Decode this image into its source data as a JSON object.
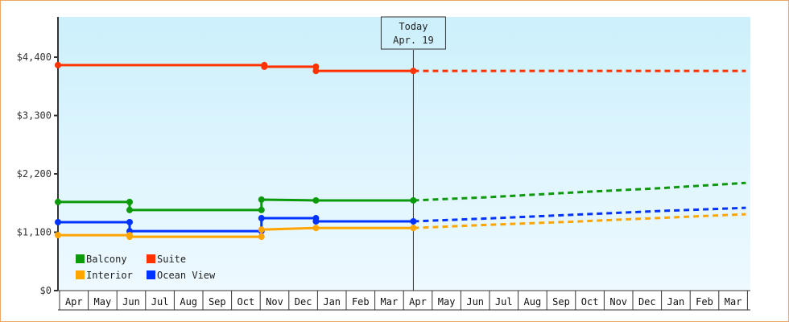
{
  "chart_data": {
    "type": "line",
    "title": "",
    "xlabel": "",
    "ylabel": "",
    "ylim": [
      0,
      4950
    ],
    "yticks": [
      0,
      1100,
      2200,
      3300,
      4400
    ],
    "ytick_labels": [
      "$0",
      "$1,100",
      "$2,200",
      "$3,300",
      "$4,400"
    ],
    "x_months": [
      "Apr",
      "May",
      "Jun",
      "Jul",
      "Aug",
      "Sep",
      "Oct",
      "Nov",
      "Dec",
      "Jan",
      "Feb",
      "Mar",
      "Apr",
      "May",
      "Jun",
      "Jul",
      "Aug",
      "Sep",
      "Oct",
      "Nov",
      "Dec",
      "Jan",
      "Feb",
      "Mar"
    ],
    "today_marker": {
      "line1": "Today",
      "line2": "Apr. 19",
      "month_index": 12.4
    },
    "legend": [
      {
        "name": "Balcony",
        "color": "#0a9a0a"
      },
      {
        "name": "Suite",
        "color": "#ff3300"
      },
      {
        "name": "Interior",
        "color": "#ffa500"
      },
      {
        "name": "Ocean View",
        "color": "#0033ff"
      }
    ],
    "series": [
      {
        "name": "Suite",
        "color": "#ff3300",
        "history": [
          [
            0,
            4250
          ],
          [
            7.2,
            4250
          ],
          [
            7.2,
            4220
          ],
          [
            9.0,
            4220
          ],
          [
            9.0,
            4140
          ],
          [
            12.4,
            4140
          ]
        ],
        "forecast": [
          [
            12.4,
            4140
          ],
          [
            24,
            4140
          ]
        ]
      },
      {
        "name": "Balcony",
        "color": "#0a9a0a",
        "history": [
          [
            0,
            1670
          ],
          [
            2.5,
            1670
          ],
          [
            2.5,
            1520
          ],
          [
            7.1,
            1520
          ],
          [
            7.1,
            1715
          ],
          [
            9.0,
            1700
          ],
          [
            12.4,
            1700
          ]
        ],
        "forecast": [
          [
            12.4,
            1700
          ],
          [
            15,
            1760
          ],
          [
            18,
            1850
          ],
          [
            21,
            1930
          ],
          [
            24,
            2030
          ]
        ]
      },
      {
        "name": "Ocean View",
        "color": "#0033ff",
        "history": [
          [
            0,
            1290
          ],
          [
            2.5,
            1290
          ],
          [
            2.5,
            1120
          ],
          [
            7.1,
            1120
          ],
          [
            7.1,
            1365
          ],
          [
            9.0,
            1365
          ],
          [
            9.0,
            1305
          ],
          [
            12.4,
            1305
          ]
        ],
        "forecast": [
          [
            12.4,
            1305
          ],
          [
            15,
            1360
          ],
          [
            18,
            1430
          ],
          [
            21,
            1500
          ],
          [
            24,
            1560
          ]
        ]
      },
      {
        "name": "Interior",
        "color": "#ffa500",
        "history": [
          [
            0,
            1045
          ],
          [
            2.5,
            1045
          ],
          [
            2.5,
            1015
          ],
          [
            7.1,
            1015
          ],
          [
            7.1,
            1150
          ],
          [
            9.0,
            1180
          ],
          [
            12.4,
            1180
          ]
        ],
        "forecast": [
          [
            12.4,
            1180
          ],
          [
            15,
            1240
          ],
          [
            18,
            1300
          ],
          [
            21,
            1370
          ],
          [
            24,
            1440
          ]
        ]
      }
    ],
    "colors": {
      "bg_top": "#ccf0fc",
      "bg_bottom": "#eef9ff",
      "axis": "#333333",
      "frame": "#e8a868"
    }
  }
}
